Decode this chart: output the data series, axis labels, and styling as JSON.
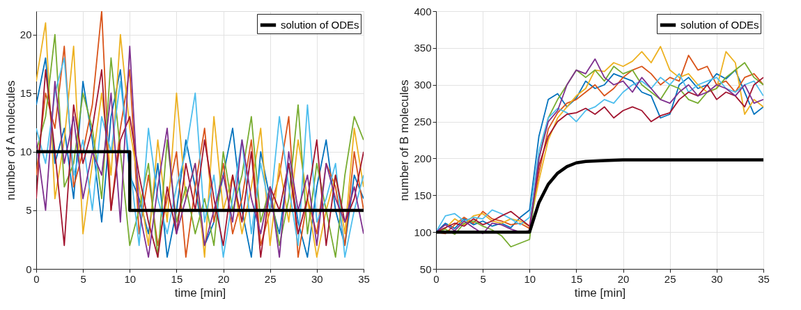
{
  "chart_data": [
    {
      "type": "line",
      "xlabel": "time [min]",
      "ylabel": "number of A molecules",
      "xlim": [
        0,
        35
      ],
      "xticks": [
        0,
        5,
        10,
        15,
        20,
        25,
        30,
        35
      ],
      "ylim": [
        0,
        22
      ],
      "yticks": [
        0,
        5,
        10,
        15,
        20
      ],
      "grid": true,
      "legend": "top right",
      "x": [
        0,
        1,
        2,
        3,
        4,
        5,
        6,
        7,
        8,
        9,
        10,
        11,
        12,
        13,
        14,
        15,
        16,
        17,
        18,
        19,
        20,
        21,
        22,
        23,
        24,
        25,
        26,
        27,
        28,
        29,
        30,
        31,
        32,
        33,
        34,
        35
      ],
      "series": [
        {
          "color": "#0072bd",
          "values": [
            14,
            18,
            9,
            12,
            6,
            16,
            11,
            4,
            13,
            17,
            8,
            6,
            3,
            9,
            1,
            5,
            11,
            7,
            2,
            4,
            8,
            12,
            5,
            1,
            10,
            6,
            3,
            9,
            4,
            1,
            7,
            11,
            5,
            2,
            8,
            6
          ]
        },
        {
          "color": "#d95319",
          "values": [
            8,
            15,
            12,
            19,
            7,
            10,
            14,
            22,
            5,
            12,
            17,
            3,
            8,
            2,
            6,
            10,
            1,
            7,
            12,
            4,
            9,
            3,
            6,
            11,
            2,
            5,
            8,
            13,
            1,
            6,
            3,
            9,
            7,
            2,
            10,
            5
          ]
        },
        {
          "color": "#edb120",
          "values": [
            16,
            21,
            6,
            11,
            19,
            3,
            9,
            15,
            8,
            20,
            12,
            7,
            2,
            11,
            4,
            15,
            6,
            9,
            1,
            13,
            5,
            8,
            3,
            7,
            12,
            2,
            9,
            4,
            11,
            6,
            1,
            5,
            8,
            3,
            12,
            7
          ]
        },
        {
          "color": "#77ac30",
          "values": [
            10,
            13,
            20,
            7,
            9,
            15,
            12,
            6,
            18,
            10,
            2,
            5,
            9,
            1,
            11,
            4,
            7,
            3,
            6,
            2,
            10,
            5,
            8,
            13,
            4,
            7,
            2,
            6,
            14,
            3,
            9,
            5,
            1,
            8,
            13,
            11
          ]
        },
        {
          "color": "#4dbeee",
          "values": [
            12,
            9,
            15,
            18,
            8,
            11,
            5,
            13,
            10,
            16,
            9,
            2,
            12,
            6,
            3,
            7,
            10,
            15,
            4,
            8,
            1,
            6,
            11,
            3,
            9,
            5,
            13,
            7,
            2,
            14,
            4,
            6,
            9,
            1,
            5,
            8
          ]
        },
        {
          "color": "#a2142f",
          "values": [
            6,
            17,
            10,
            2,
            14,
            9,
            12,
            17,
            5,
            11,
            13,
            8,
            4,
            1,
            7,
            3,
            9,
            5,
            11,
            6,
            2,
            8,
            4,
            10,
            1,
            7,
            5,
            9,
            3,
            6,
            11,
            2,
            8,
            4,
            6,
            10
          ]
        },
        {
          "color": "#7e2f8e",
          "values": [
            11,
            5,
            16,
            9,
            13,
            6,
            10,
            8,
            15,
            4,
            19,
            5,
            1,
            7,
            12,
            3,
            6,
            9,
            2,
            5,
            8,
            4,
            11,
            6,
            3,
            7,
            1,
            10,
            5,
            8,
            2,
            9,
            6,
            4,
            7,
            3
          ]
        },
        {
          "name": "solution of ODEs",
          "color": "#000000",
          "x": [
            0,
            10,
            10,
            35
          ],
          "values": [
            10,
            10,
            5,
            5
          ]
        }
      ]
    },
    {
      "type": "line",
      "xlabel": "time [min]",
      "ylabel": "number of B molecules",
      "xlim": [
        0,
        35
      ],
      "xticks": [
        0,
        5,
        10,
        15,
        20,
        25,
        30,
        35
      ],
      "ylim": [
        50,
        400
      ],
      "yticks": [
        50,
        100,
        150,
        200,
        250,
        300,
        350,
        400
      ],
      "grid": true,
      "legend": "top right",
      "x": [
        0,
        1,
        2,
        3,
        4,
        5,
        6,
        7,
        8,
        9,
        10,
        11,
        12,
        13,
        14,
        15,
        16,
        17,
        18,
        19,
        20,
        21,
        22,
        23,
        24,
        25,
        26,
        27,
        28,
        29,
        30,
        31,
        32,
        33,
        34,
        35
      ],
      "series": [
        {
          "color": "#0072bd",
          "values": [
            100,
            112,
            105,
            118,
            110,
            115,
            108,
            112,
            106,
            120,
            130,
            230,
            280,
            288,
            270,
            282,
            305,
            295,
            300,
            315,
            310,
            305,
            290,
            285,
            255,
            260,
            300,
            310,
            295,
            300,
            315,
            308,
            320,
            290,
            260,
            270
          ]
        },
        {
          "color": "#d95319",
          "values": [
            100,
            98,
            110,
            120,
            112,
            128,
            118,
            115,
            110,
            112,
            105,
            180,
            240,
            262,
            275,
            280,
            290,
            300,
            285,
            295,
            310,
            320,
            325,
            315,
            300,
            310,
            305,
            340,
            320,
            325,
            300,
            305,
            290,
            310,
            315,
            300
          ]
        },
        {
          "color": "#edb120",
          "values": [
            100,
            105,
            118,
            110,
            122,
            125,
            115,
            112,
            118,
            115,
            108,
            170,
            225,
            255,
            270,
            285,
            295,
            320,
            318,
            330,
            325,
            332,
            345,
            330,
            352,
            320,
            310,
            315,
            300,
            290,
            295,
            345,
            330,
            260,
            280,
            270
          ]
        },
        {
          "color": "#77ac30",
          "values": [
            100,
            104,
            97,
            112,
            115,
            108,
            103,
            95,
            80,
            85,
            90,
            200,
            255,
            280,
            300,
            320,
            310,
            320,
            305,
            325,
            315,
            320,
            300,
            290,
            280,
            300,
            295,
            280,
            275,
            290,
            295,
            310,
            320,
            330,
            310,
            300
          ]
        },
        {
          "color": "#4dbeee",
          "values": [
            100,
            122,
            125,
            115,
            120,
            118,
            130,
            125,
            118,
            110,
            120,
            210,
            255,
            268,
            262,
            250,
            265,
            270,
            280,
            275,
            290,
            300,
            305,
            295,
            310,
            300,
            315,
            290,
            300,
            305,
            310,
            295,
            290,
            300,
            305,
            285
          ]
        },
        {
          "color": "#a2142f",
          "values": [
            100,
            106,
            112,
            108,
            118,
            110,
            115,
            122,
            128,
            118,
            108,
            190,
            230,
            250,
            260,
            262,
            268,
            260,
            270,
            255,
            265,
            270,
            265,
            250,
            258,
            262,
            280,
            290,
            285,
            300,
            280,
            290,
            285,
            270,
            300,
            310
          ]
        },
        {
          "color": "#7e2f8e",
          "values": [
            100,
            110,
            102,
            115,
            106,
            98,
            112,
            110,
            104,
            100,
            102,
            200,
            250,
            265,
            300,
            320,
            315,
            335,
            310,
            300,
            305,
            290,
            310,
            295,
            280,
            275,
            290,
            300,
            285,
            290,
            300,
            295,
            285,
            300,
            275,
            280
          ]
        },
        {
          "name": "solution of ODEs",
          "color": "#000000",
          "x": [
            0,
            10,
            11,
            12,
            13,
            14,
            15,
            16,
            18,
            20,
            25,
            35
          ],
          "values": [
            100,
            100,
            140,
            165,
            180,
            189,
            194,
            196,
            197,
            198,
            198,
            198
          ]
        }
      ]
    }
  ]
}
